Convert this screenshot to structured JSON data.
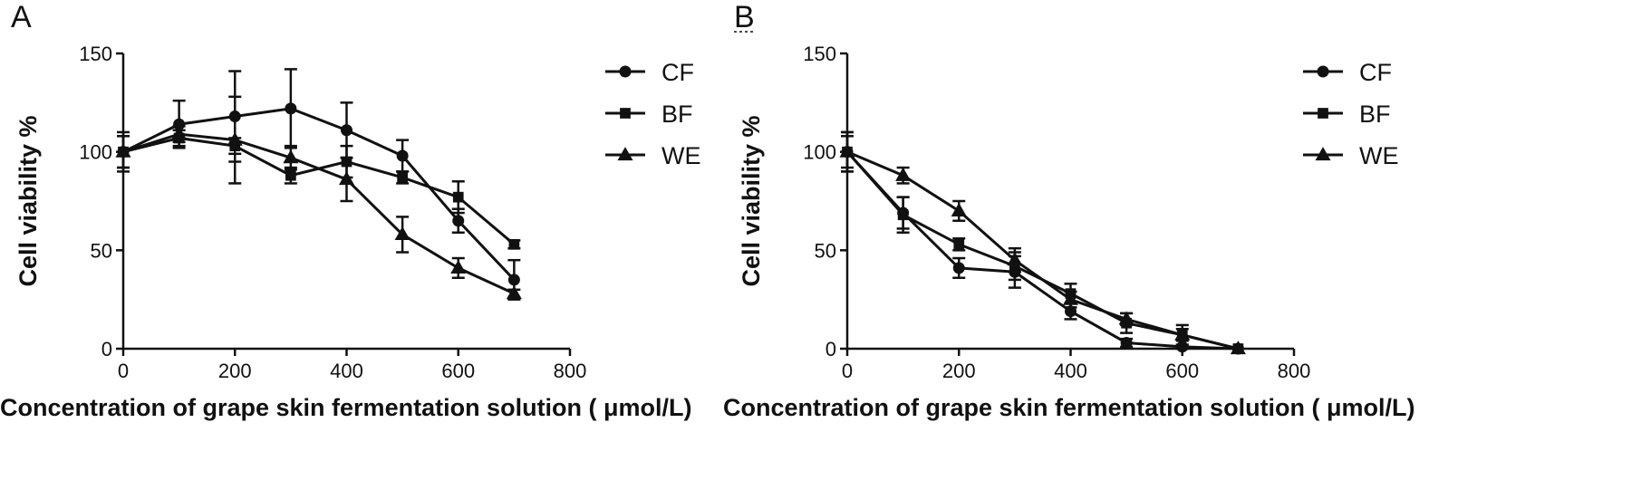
{
  "chart_data": [
    {
      "type": "line",
      "panel_label": "A",
      "xlabel": "Concentration of grape skin fermentation solution ( μmol/L)",
      "ylabel": "Cell viability %",
      "xlim": [
        0,
        800
      ],
      "ylim": [
        0,
        150
      ],
      "xticks": [
        0,
        200,
        400,
        600,
        800
      ],
      "yticks": [
        0,
        50,
        100,
        150
      ],
      "grid": false,
      "legend_position": "top-right",
      "x": [
        0,
        100,
        200,
        300,
        400,
        500,
        600,
        700
      ],
      "series": [
        {
          "name": "CF",
          "marker": "circle",
          "values": [
            100,
            114,
            118,
            122,
            111,
            98,
            65,
            35
          ],
          "errors": [
            8,
            12,
            23,
            20,
            14,
            8,
            6,
            10
          ]
        },
        {
          "name": "BF",
          "marker": "square",
          "values": [
            100,
            107,
            103,
            88,
            95,
            87,
            77,
            53
          ],
          "errors": [
            8,
            4,
            4,
            4,
            8,
            3,
            8,
            2
          ]
        },
        {
          "name": "WE",
          "marker": "triangle",
          "values": [
            100,
            109,
            106,
            97,
            86,
            58,
            41,
            28
          ],
          "errors": [
            10,
            4,
            22,
            6,
            11,
            9,
            5,
            2
          ]
        }
      ]
    },
    {
      "type": "line",
      "panel_label": "B",
      "xlabel": "Concentration of grape skin fermentation solution ( μmol/L)",
      "ylabel": "Cell viability %",
      "xlim": [
        0,
        800
      ],
      "ylim": [
        0,
        150
      ],
      "xticks": [
        0,
        200,
        400,
        600,
        800
      ],
      "yticks": [
        0,
        50,
        100,
        150
      ],
      "grid": false,
      "legend_position": "top-right",
      "x": [
        0,
        100,
        200,
        300,
        400,
        500,
        600,
        700
      ],
      "series": [
        {
          "name": "CF",
          "marker": "circle",
          "values": [
            100,
            69,
            41,
            39,
            19,
            3,
            1,
            0
          ],
          "errors": [
            10,
            8,
            5,
            8,
            4,
            2,
            1,
            0
          ]
        },
        {
          "name": "BF",
          "marker": "square",
          "values": [
            100,
            68,
            53,
            42,
            28,
            13,
            7,
            0
          ],
          "errors": [
            8,
            9,
            3,
            7,
            5,
            5,
            5,
            0
          ]
        },
        {
          "name": "WE",
          "marker": "triangle",
          "values": [
            100,
            88,
            70,
            45,
            25,
            15,
            7,
            0
          ],
          "errors": [
            10,
            4,
            5,
            6,
            4,
            3,
            3,
            0
          ]
        }
      ]
    }
  ]
}
